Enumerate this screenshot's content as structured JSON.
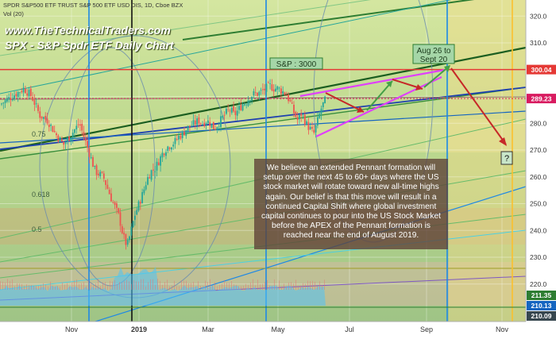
{
  "header": {
    "symbol_line": "SPDR S&P500 ETF TRUST S&P 500 ETF USD DIS, 1D, Cboe BZX",
    "vol_line": "Vol (20)",
    "site": "www.TheTechnicalTraders.com",
    "chart_title": "SPX - S&P Spdr ETF Daily Chart"
  },
  "annotations": {
    "sp_label": "S&P : 3000",
    "window_label_1": "Aug 26 to",
    "window_label_2": "Sept 20",
    "question": "?",
    "fib_labels": [
      "0.75",
      "0.618",
      "0.5"
    ],
    "commentary": "We believe an extended Pennant formation will setup over the next 45 to 60+ days where the US stock market will rotate toward new all-time highs again.  Our belief is that this move will result in a continued Capital Shift where global investment capital continues to pour into the US Stock Market before the APEX of the Pennant formation is reached near the end of August 2019."
  },
  "chart_data": {
    "type": "candlestick",
    "title": "SPX - S&P Spdr ETF Daily Chart",
    "x_ticks": [
      "Nov",
      "2019",
      "Mar",
      "May",
      "Jul",
      "Sep",
      "Nov"
    ],
    "y_ticks": [
      220,
      230,
      240,
      250,
      260,
      270,
      280,
      290,
      300,
      310,
      320
    ],
    "ylim": [
      206,
      326
    ],
    "price_tags": [
      {
        "value": 300.04,
        "label": "300.04",
        "color": "#e53935"
      },
      {
        "value": 289.23,
        "label": "289.23",
        "color": "#d81b60"
      },
      {
        "value": 211.35,
        "label": "211.35",
        "color": "#2e7d32"
      },
      {
        "value": 210.13,
        "label": "210.13",
        "color": "#1565c0"
      },
      {
        "value": 210.09,
        "label": "210.09",
        "color": "#37474f"
      }
    ],
    "price_path": [
      [
        0,
        287
      ],
      [
        10,
        289
      ],
      [
        20,
        291
      ],
      [
        30,
        293
      ],
      [
        40,
        290
      ],
      [
        50,
        283
      ],
      [
        60,
        281
      ],
      [
        70,
        276
      ],
      [
        80,
        272
      ],
      [
        90,
        276
      ],
      [
        100,
        280
      ],
      [
        110,
        271
      ],
      [
        120,
        262
      ],
      [
        130,
        260
      ],
      [
        140,
        252
      ],
      [
        150,
        245
      ],
      [
        155,
        238
      ],
      [
        160,
        234
      ],
      [
        165,
        240
      ],
      [
        170,
        246
      ],
      [
        175,
        250
      ],
      [
        180,
        254
      ],
      [
        185,
        259
      ],
      [
        190,
        262
      ],
      [
        195,
        263
      ],
      [
        200,
        266
      ],
      [
        205,
        269
      ],
      [
        210,
        271
      ],
      [
        215,
        272
      ],
      [
        220,
        273
      ],
      [
        225,
        275
      ],
      [
        230,
        276
      ],
      [
        235,
        278
      ],
      [
        240,
        279
      ],
      [
        245,
        280
      ],
      [
        250,
        281
      ],
      [
        255,
        280
      ],
      [
        260,
        281
      ],
      [
        265,
        280
      ],
      [
        270,
        278
      ],
      [
        275,
        280
      ],
      [
        280,
        282
      ],
      [
        285,
        284
      ],
      [
        290,
        285
      ],
      [
        295,
        283
      ],
      [
        300,
        285
      ],
      [
        305,
        287
      ],
      [
        310,
        288
      ],
      [
        315,
        290
      ],
      [
        320,
        291
      ],
      [
        325,
        291
      ],
      [
        330,
        292
      ],
      [
        335,
        293
      ],
      [
        340,
        294
      ],
      [
        345,
        293
      ],
      [
        350,
        293
      ],
      [
        355,
        292
      ],
      [
        360,
        291
      ],
      [
        365,
        288
      ],
      [
        370,
        284
      ],
      [
        375,
        281
      ],
      [
        380,
        284
      ],
      [
        385,
        280
      ],
      [
        390,
        278
      ],
      [
        395,
        276
      ],
      [
        400,
        281
      ],
      [
        405,
        286
      ],
      [
        410,
        289
      ]
    ],
    "volume_baseline": 211.35
  },
  "colors": {
    "bull_candle": "#26a69a",
    "bear_candle": "#ef5350",
    "resistance": "#e53935",
    "pennant": "#e040fb",
    "arrow": "#c62828",
    "cycle_blue": "#1e88e5",
    "green_trend": "#2e7d32",
    "volume": "#4fc3f7",
    "note_bg": "#5d4037"
  }
}
